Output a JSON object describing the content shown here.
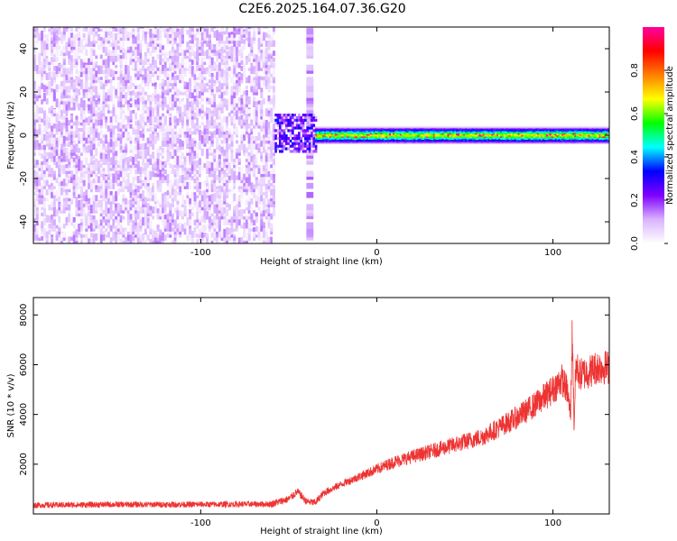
{
  "title": "C2E6.2025.164.07.36.G20",
  "chart_data": [
    {
      "type": "heatmap",
      "xlabel": "Height of straight line (km)",
      "ylabel": "Frequency (Hz)",
      "xlim": [
        -195,
        132
      ],
      "ylim": [
        -50,
        50
      ],
      "x_ticks": [
        -100,
        0,
        100
      ],
      "y_ticks": [
        -40,
        -20,
        0,
        20,
        40
      ],
      "colorbar": {
        "label": "Normalized spectral amplitude",
        "range": [
          0,
          1
        ],
        "ticks": [
          0.0,
          0.2,
          0.4,
          0.6,
          0.8
        ],
        "colors": [
          "#ffffff",
          "#d9b3ff",
          "#8000ff",
          "#0000ff",
          "#00ffff",
          "#00ff00",
          "#ffff00",
          "#ff8000",
          "#ff0000",
          "#ff00a0"
        ]
      },
      "regions": [
        {
          "description": "noise",
          "x_range": [
            -195,
            -58
          ],
          "f_range": [
            -50,
            50
          ],
          "amplitude_range": [
            0.0,
            0.15
          ]
        },
        {
          "description": "transition",
          "x_range": [
            -58,
            -35
          ],
          "f_range": [
            -8,
            10
          ],
          "amplitude_range": [
            0.1,
            0.35
          ]
        },
        {
          "description": "carrier",
          "x_range": [
            -35,
            132
          ],
          "f_center": 0,
          "f_halfwidth": 4,
          "amplitude_range": [
            0.3,
            1.0
          ]
        }
      ]
    },
    {
      "type": "line",
      "xlabel": "Height of straight line (km)",
      "ylabel": "SNR (10 * v/v)",
      "xlim": [
        -195,
        132
      ],
      "ylim": [
        0,
        8700
      ],
      "x_ticks": [
        -100,
        0,
        100
      ],
      "y_ticks": [
        2000,
        4000,
        6000,
        8000
      ],
      "series": [
        {
          "color": "#ee3333",
          "x": [
            -195,
            -150,
            -100,
            -60,
            -50,
            -45,
            -40,
            -35,
            -30,
            -20,
            -10,
            0,
            10,
            20,
            30,
            40,
            50,
            60,
            70,
            80,
            90,
            100,
            105,
            108,
            110,
            111,
            112,
            113,
            115,
            120,
            125,
            132
          ],
          "y": [
            350,
            380,
            380,
            400,
            600,
            900,
            500,
            450,
            850,
            1200,
            1500,
            1800,
            2100,
            2300,
            2500,
            2700,
            2900,
            3100,
            3500,
            3900,
            4400,
            5000,
            5400,
            5000,
            4000,
            7500,
            3500,
            6000,
            5600,
            5700,
            5900,
            5900
          ]
        }
      ]
    }
  ]
}
